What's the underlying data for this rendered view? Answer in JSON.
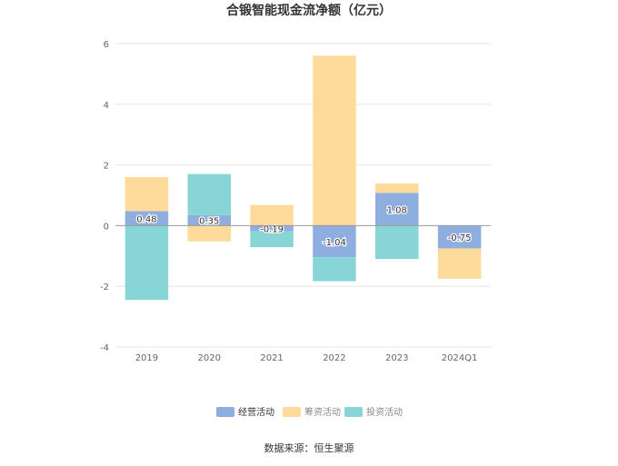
{
  "title": "合锻智能现金流净额（亿元）",
  "source": "数据来源：恒生聚源",
  "colors": {
    "operating": "#8eaee0",
    "financing": "#fedb9b",
    "investing": "#88d5d8",
    "axis": "#999999",
    "grid": "#e6e6e6",
    "title": "#333333",
    "text": "#666666"
  },
  "chart_data": {
    "type": "bar",
    "stacked": true,
    "title": "合锻智能现金流净额（亿元）",
    "categories": [
      "2019",
      "2020",
      "2021",
      "2022",
      "2023",
      "2024Q1"
    ],
    "ylim": [
      -4,
      6
    ],
    "yticks": [
      -4,
      -2,
      0,
      2,
      4,
      6
    ],
    "grid": true,
    "legend_position": "bottom",
    "series": [
      {
        "name": "经营活动",
        "color": "#8eaee0",
        "values": [
          0.48,
          0.35,
          -0.19,
          -1.04,
          1.08,
          -0.75
        ],
        "data_labels": [
          "0.48",
          "0.35",
          "-0.19",
          "-1.04",
          "1.08",
          "-0.75"
        ]
      },
      {
        "name": "筹资活动",
        "color": "#fedb9b",
        "values": [
          1.12,
          -0.52,
          0.68,
          5.6,
          0.31,
          -1.0
        ]
      },
      {
        "name": "投资活动",
        "color": "#88d5d8",
        "values": [
          -2.45,
          1.35,
          -0.52,
          -0.79,
          -1.1,
          0.0
        ]
      }
    ]
  }
}
